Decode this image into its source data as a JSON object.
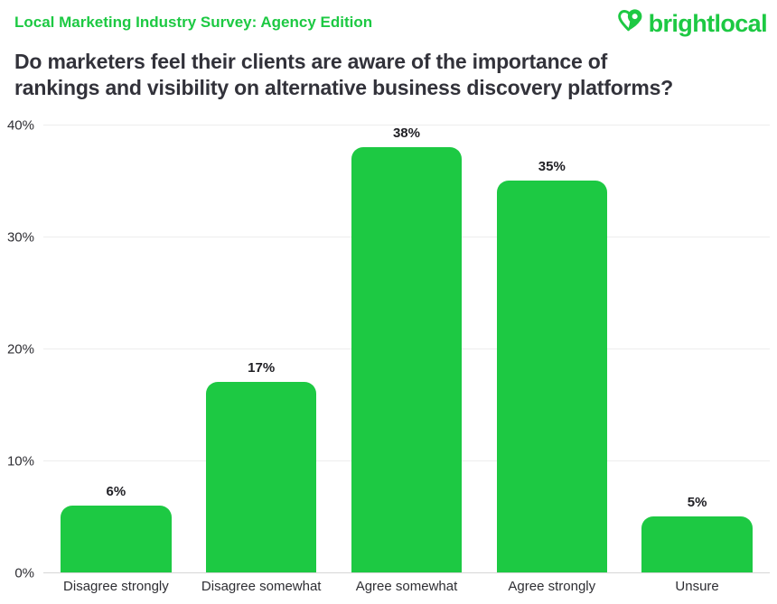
{
  "header": {
    "eyebrow": "Local Marketing Industry Survey: Agency Edition",
    "title_lines": [
      "Do marketers feel their clients are aware of the importance of",
      "rankings and visibility on alternative business discovery platforms?"
    ],
    "logo_text": "brightlocal"
  },
  "colors": {
    "brand_green": "#1dc943",
    "title_dark": "#32323a",
    "gridline": "#ededed",
    "baseline": "#d6d6d6",
    "axis_label": "#2e2e33",
    "value_label": "#1f1f24"
  },
  "chart_data": {
    "type": "bar",
    "title": "Do marketers feel their clients are aware of the importance of rankings and visibility on alternative business discovery platforms?",
    "categories": [
      "Disagree strongly",
      "Disagree somewhat",
      "Agree somewhat",
      "Agree strongly",
      "Unsure"
    ],
    "values": [
      6,
      17,
      38,
      35,
      5
    ],
    "value_labels": [
      "6%",
      "17%",
      "38%",
      "35%",
      "5%"
    ],
    "y_ticks": [
      "40%",
      "30%",
      "20%",
      "10%",
      "0%"
    ],
    "ylim": [
      0,
      40
    ],
    "xlabel": "",
    "ylabel": "",
    "bar_color": "#1dc943",
    "grid": true,
    "legend": false
  }
}
